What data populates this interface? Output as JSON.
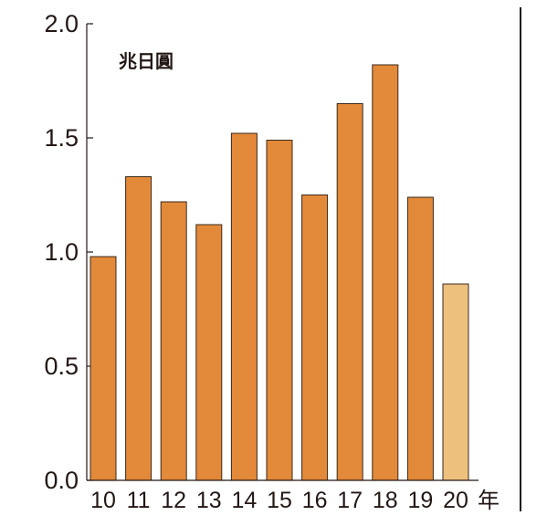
{
  "chart_data": {
    "type": "bar",
    "categories": [
      "10",
      "11",
      "12",
      "13",
      "14",
      "15",
      "16",
      "17",
      "18",
      "19",
      "20"
    ],
    "values": [
      0.98,
      1.33,
      1.22,
      1.12,
      1.52,
      1.49,
      1.25,
      1.65,
      1.82,
      1.24,
      0.86
    ],
    "y_unit": "兆日圓",
    "x_unit": "年",
    "ylim": [
      0,
      2.0
    ],
    "yticks": [
      "0.0",
      "0.5",
      "1.0",
      "1.5",
      "2.0"
    ],
    "grid": false,
    "colors": {
      "bar": "#E3893A",
      "bar_highlight": "#EEC07E",
      "bar_stroke": "#3a2a1c",
      "axis": "#231815"
    },
    "highlight_index": 10
  }
}
